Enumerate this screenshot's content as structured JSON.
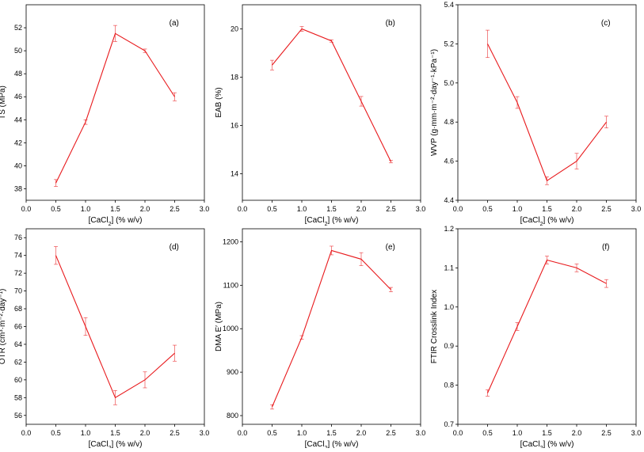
{
  "figure": {
    "line_color": "#e8191c",
    "axis_color": "#000000"
  },
  "chart_data": [
    {
      "type": "line",
      "panel_label": "(a)",
      "xlabel": "[CaCl₂] (% w/v)",
      "ylabel": "TS (MPa)",
      "xlim": [
        0.0,
        3.0
      ],
      "ylim": [
        37,
        54
      ],
      "xticks": [
        0.0,
        0.5,
        1.0,
        1.5,
        2.0,
        2.5,
        3.0
      ],
      "yticks": [
        38,
        40,
        42,
        44,
        46,
        48,
        50,
        52
      ],
      "x": [
        0.5,
        1.0,
        1.5,
        2.0,
        2.5
      ],
      "y": [
        38.5,
        43.8,
        51.5,
        50.0,
        46.0
      ],
      "yerr": [
        0.3,
        0.2,
        0.7,
        0.15,
        0.35
      ],
      "x_decimals": 1,
      "y_decimals": 0
    },
    {
      "type": "line",
      "panel_label": "(b)",
      "xlabel": "[CaCl₂] (% w/v)",
      "ylabel": "EAB (%)",
      "xlim": [
        0.0,
        3.0
      ],
      "ylim": [
        12.9,
        21.0
      ],
      "xticks": [
        0.0,
        0.5,
        1.0,
        1.5,
        2.0,
        2.5,
        3.0
      ],
      "yticks": [
        14,
        16,
        18,
        20
      ],
      "x": [
        0.5,
        1.0,
        1.5,
        2.0,
        2.5
      ],
      "y": [
        18.5,
        20.0,
        19.5,
        17.0,
        14.5
      ],
      "yerr": [
        0.2,
        0.1,
        0.05,
        0.2,
        0.05
      ],
      "x_decimals": 1,
      "y_decimals": 0
    },
    {
      "type": "line",
      "panel_label": "(c)",
      "xlabel": "[CaCl₂] (% w/v)",
      "ylabel": "WVP (g·mm·m⁻²·day⁻¹·kPa⁻¹)",
      "xlim": [
        0.0,
        3.0
      ],
      "ylim": [
        4.4,
        5.4
      ],
      "xticks": [
        0.0,
        0.5,
        1.0,
        1.5,
        2.0,
        2.5,
        3.0
      ],
      "yticks": [
        4.4,
        4.6,
        4.8,
        5.0,
        5.2,
        5.4
      ],
      "x": [
        0.5,
        1.0,
        1.5,
        2.0,
        2.5
      ],
      "y": [
        5.2,
        4.9,
        4.5,
        4.6,
        4.8
      ],
      "yerr": [
        0.07,
        0.03,
        0.02,
        0.04,
        0.03
      ],
      "x_decimals": 1,
      "y_decimals": 1
    },
    {
      "type": "line",
      "panel_label": "(d)",
      "xlabel": "[CaCl₂] (% w/v)",
      "ylabel": "OTR (cm³·m⁻²·day⁻¹)",
      "xlim": [
        0.0,
        3.0
      ],
      "ylim": [
        55,
        77
      ],
      "xticks": [
        0.0,
        0.5,
        1.0,
        1.5,
        2.0,
        2.5,
        3.0
      ],
      "yticks": [
        56,
        58,
        60,
        62,
        64,
        66,
        68,
        70,
        72,
        74,
        76
      ],
      "x": [
        0.5,
        1.0,
        1.5,
        2.0,
        2.5
      ],
      "y": [
        74.0,
        66.0,
        58.0,
        60.0,
        63.0
      ],
      "yerr": [
        1.0,
        1.0,
        0.8,
        0.9,
        0.9
      ],
      "x_decimals": 1,
      "y_decimals": 0
    },
    {
      "type": "line",
      "panel_label": "(e)",
      "xlabel": "[CaCl₂] (% w/v)",
      "ylabel": "DMA E′ (MPa)",
      "xlim": [
        0.0,
        3.0
      ],
      "ylim": [
        780,
        1230
      ],
      "xticks": [
        0.0,
        0.5,
        1.0,
        1.5,
        2.0,
        2.5,
        3.0
      ],
      "yticks": [
        800,
        900,
        1000,
        1100,
        1200
      ],
      "x": [
        0.5,
        1.0,
        1.5,
        2.0,
        2.5
      ],
      "y": [
        820,
        980,
        1180,
        1160,
        1090
      ],
      "yerr": [
        5,
        4,
        10,
        15,
        5
      ],
      "x_decimals": 1,
      "y_decimals": 0
    },
    {
      "type": "line",
      "panel_label": "(f)",
      "xlabel": "[CaCl₂] (% w/v)",
      "ylabel": "FTIR Crosslink Index",
      "xlim": [
        0.0,
        3.0
      ],
      "ylim": [
        0.7,
        1.2
      ],
      "xticks": [
        0.0,
        0.5,
        1.0,
        1.5,
        2.0,
        2.5,
        3.0
      ],
      "yticks": [
        0.7,
        0.8,
        0.9,
        1.0,
        1.1,
        1.2
      ],
      "x": [
        0.5,
        1.0,
        1.5,
        2.0,
        2.5
      ],
      "y": [
        0.78,
        0.95,
        1.12,
        1.1,
        1.06
      ],
      "yerr": [
        0.008,
        0.01,
        0.01,
        0.01,
        0.01
      ],
      "x_decimals": 1,
      "y_decimals": 1
    }
  ]
}
